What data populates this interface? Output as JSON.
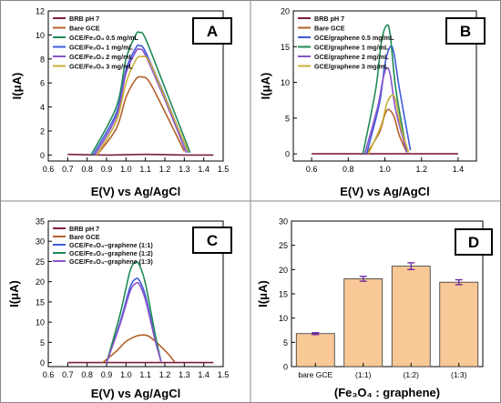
{
  "chart_data": [
    {
      "panel": "A",
      "type": "line",
      "xlabel": "E(V) vs Ag/AgCl",
      "ylabel": "I(μA)",
      "xlim": [
        0.6,
        1.5
      ],
      "ylim": [
        -0.5,
        12
      ],
      "xticks": [
        "0.6",
        "0.7",
        "0.8",
        "0.9",
        "1.0",
        "1.1",
        "1.2",
        "1.3",
        "1.4",
        "1.5"
      ],
      "yticks": [
        "0",
        "2",
        "4",
        "6",
        "8",
        "10",
        "12"
      ],
      "legend": "top-left",
      "series": [
        {
          "name": "BRB pH 7",
          "color": "#7a1f3d",
          "x": [
            0.7,
            0.9,
            1.1,
            1.3,
            1.45
          ],
          "y": [
            0.05,
            0.0,
            0.05,
            0.0,
            0.0
          ]
        },
        {
          "name": "Bare GCE",
          "color": "#b5602a",
          "x": [
            0.85,
            0.95,
            1.0,
            1.05,
            1.08,
            1.12,
            1.2,
            1.3
          ],
          "y": [
            0,
            2.2,
            4.8,
            6.3,
            6.5,
            6.1,
            3.6,
            0.3
          ]
        },
        {
          "name": "GCE/Fe₃O₄ 0.5 mg/mL",
          "color": "#1f8a55",
          "x": [
            0.82,
            0.95,
            1.0,
            1.05,
            1.07,
            1.1,
            1.2,
            1.33
          ],
          "y": [
            0,
            4.0,
            8.0,
            10.0,
            10.2,
            9.7,
            5.6,
            0.2
          ]
        },
        {
          "name": "GCE/Fe₃O₄ 1 mg/mL",
          "color": "#3d5bd9",
          "x": [
            0.83,
            0.95,
            1.0,
            1.05,
            1.07,
            1.1,
            1.2,
            1.32
          ],
          "y": [
            0,
            3.5,
            7.1,
            8.9,
            9.1,
            8.6,
            4.9,
            0.2
          ]
        },
        {
          "name": "GCE/Fe₃O₄ 2 mg/mL",
          "color": "#8a55c9",
          "x": [
            0.84,
            0.95,
            1.0,
            1.05,
            1.07,
            1.1,
            1.2,
            1.31
          ],
          "y": [
            0,
            3.2,
            6.8,
            8.6,
            8.8,
            8.3,
            4.6,
            0.2
          ]
        },
        {
          "name": "GCE/Fe₃O₄ 3 mg/mL",
          "color": "#c9b03a",
          "x": [
            0.85,
            0.95,
            1.0,
            1.05,
            1.08,
            1.12,
            1.2,
            1.32
          ],
          "y": [
            0,
            2.8,
            6.0,
            7.9,
            8.2,
            7.8,
            4.8,
            0.3
          ]
        }
      ]
    },
    {
      "panel": "B",
      "type": "line",
      "xlabel": "E(V) vs Ag/AgCl",
      "ylabel": "I(μA)",
      "xlim": [
        0.5,
        1.5
      ],
      "ylim": [
        -1,
        20
      ],
      "xticks": [
        "0.6",
        "0.8",
        "1.0",
        "1.2",
        "1.4"
      ],
      "yticks": [
        "0",
        "5",
        "10",
        "15",
        "20"
      ],
      "legend": "top-left",
      "series": [
        {
          "name": "BRB pH 7",
          "color": "#7a1f3d",
          "x": [
            0.6,
            0.8,
            1.0,
            1.2,
            1.4
          ],
          "y": [
            0,
            0,
            0,
            0,
            0
          ]
        },
        {
          "name": "Bare GCE",
          "color": "#b5602a",
          "x": [
            0.9,
            0.97,
            1.0,
            1.02,
            1.05,
            1.08,
            1.12
          ],
          "y": [
            0,
            3.0,
            5.5,
            6.2,
            5.2,
            2.5,
            0.2
          ]
        },
        {
          "name": "GCE/graphene 0.5 mg/mL",
          "color": "#3d5bd9",
          "x": [
            0.9,
            0.97,
            1.0,
            1.03,
            1.05,
            1.08,
            1.14
          ],
          "y": [
            0,
            7.0,
            12.5,
            15.0,
            14.0,
            9.0,
            0.5
          ]
        },
        {
          "name": "GCE/graphene 1 mg/mL",
          "color": "#1f8a55",
          "x": [
            0.88,
            0.95,
            0.98,
            1.01,
            1.03,
            1.06,
            1.12
          ],
          "y": [
            0,
            9.0,
            15.5,
            18.0,
            16.5,
            9.0,
            0.3
          ]
        },
        {
          "name": "GCE/graphene 2 mg/mL",
          "color": "#8a55c9",
          "x": [
            0.89,
            0.96,
            0.99,
            1.01,
            1.03,
            1.06,
            1.12
          ],
          "y": [
            0,
            6.5,
            10.5,
            12.0,
            11.0,
            6.0,
            0.2
          ]
        },
        {
          "name": "GCE/graphene 3 mg/mL",
          "color": "#c9b03a",
          "x": [
            0.91,
            0.98,
            1.01,
            1.04,
            1.06,
            1.09,
            1.13
          ],
          "y": [
            0,
            4.0,
            7.0,
            8.2,
            7.4,
            3.5,
            0.2
          ]
        }
      ]
    },
    {
      "panel": "C",
      "type": "line",
      "xlabel": "E(V) vs Ag/AgCl",
      "ylabel": "I(μA)",
      "xlim": [
        0.6,
        1.5
      ],
      "ylim": [
        -1,
        35
      ],
      "xticks": [
        "0.6",
        "0.7",
        "0.8",
        "0.9",
        "1.0",
        "1.1",
        "1.2",
        "1.3",
        "1.4",
        "1.5"
      ],
      "yticks": [
        "0",
        "5",
        "10",
        "15",
        "20",
        "25",
        "30",
        "35"
      ],
      "legend": "top-left",
      "series": [
        {
          "name": "BRB pH 7",
          "color": "#7a1f3d",
          "x": [
            0.7,
            0.9,
            1.1,
            1.3,
            1.45
          ],
          "y": [
            0,
            0,
            0,
            0,
            0
          ]
        },
        {
          "name": "Bare GCE",
          "color": "#b5602a",
          "x": [
            0.88,
            0.95,
            1.0,
            1.05,
            1.08,
            1.12,
            1.2,
            1.25
          ],
          "y": [
            0,
            2.8,
            5.2,
            6.5,
            6.8,
            6.4,
            3.0,
            0.2
          ]
        },
        {
          "name": "GCE/Fe₃O₄–graphene (1:1)",
          "color": "#3d5bd9",
          "x": [
            0.9,
            0.97,
            1.02,
            1.05,
            1.07,
            1.1,
            1.15,
            1.18
          ],
          "y": [
            0,
            10.0,
            18.5,
            20.7,
            20.2,
            16.5,
            6.0,
            0.3
          ]
        },
        {
          "name": "GCE/Fe₃O₄–graphene (1:2)",
          "color": "#1f8a55",
          "x": [
            0.9,
            0.97,
            1.02,
            1.05,
            1.07,
            1.1,
            1.15,
            1.18
          ],
          "y": [
            0,
            12.0,
            22.5,
            24.8,
            24.0,
            19.5,
            7.0,
            0.3
          ]
        },
        {
          "name": "GCE/Fe₃O₄–graphene (1:3)",
          "color": "#8a55c9",
          "x": [
            0.9,
            0.97,
            1.02,
            1.05,
            1.07,
            1.1,
            1.15,
            1.18
          ],
          "y": [
            0,
            9.5,
            17.5,
            19.6,
            19.2,
            15.5,
            5.5,
            0.3
          ]
        }
      ]
    },
    {
      "panel": "D",
      "type": "bar",
      "xlabel": "(Fe₃O₄ : graphene)",
      "ylabel": "I(μA)",
      "ylim": [
        0,
        30
      ],
      "yticks": [
        "0",
        "5",
        "10",
        "15",
        "20",
        "25",
        "30"
      ],
      "categories": [
        "bare GCE",
        "(1:1)",
        "(1:2)",
        "(1:3)"
      ],
      "values": [
        6.8,
        18.1,
        20.7,
        17.4
      ],
      "errors": [
        0.2,
        0.5,
        0.7,
        0.5
      ],
      "bar_color": "#f8c896",
      "error_color": "#6a1fa0"
    }
  ],
  "panel_labels": [
    "A",
    "B",
    "C",
    "D"
  ]
}
